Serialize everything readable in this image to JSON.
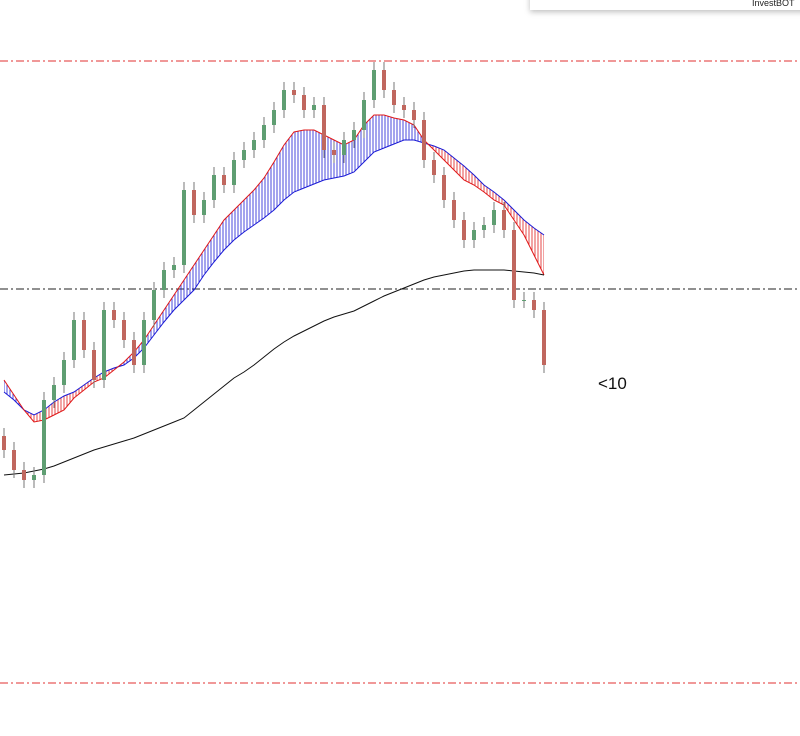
{
  "app": {
    "brand": "InvestBOT"
  },
  "chart_data": {
    "type": "candlestick",
    "ylim": [
      0,
      736
    ],
    "open": [
      300,
      286,
      266,
      256,
      261,
      336,
      351,
      376,
      416,
      386,
      356,
      426,
      416,
      396,
      371,
      416,
      446,
      466,
      471,
      546,
      521,
      536,
      561,
      551,
      576,
      586,
      596,
      611,
      626,
      646,
      641,
      626,
      631,
      586,
      581,
      596,
      606,
      636,
      666,
      646,
      631,
      626,
      616,
      576,
      561,
      536,
      516,
      496,
      506,
      511,
      526,
      506,
      436,
      436,
      426
    ],
    "high": [
      308,
      294,
      274,
      269,
      344,
      359,
      384,
      424,
      424,
      394,
      434,
      434,
      424,
      404,
      424,
      454,
      474,
      479,
      554,
      554,
      544,
      569,
      569,
      584,
      594,
      604,
      619,
      634,
      654,
      654,
      649,
      639,
      639,
      594,
      604,
      614,
      644,
      674,
      674,
      654,
      639,
      634,
      624,
      584,
      569,
      544,
      524,
      514,
      519,
      534,
      534,
      514,
      444,
      444,
      434
    ],
    "low": [
      278,
      258,
      248,
      248,
      253,
      328,
      343,
      368,
      378,
      348,
      348,
      408,
      388,
      363,
      363,
      408,
      438,
      458,
      463,
      513,
      513,
      528,
      543,
      543,
      568,
      578,
      588,
      603,
      618,
      633,
      618,
      618,
      578,
      573,
      573,
      588,
      598,
      628,
      638,
      623,
      618,
      608,
      568,
      553,
      528,
      508,
      488,
      488,
      498,
      503,
      498,
      428,
      428,
      418,
      363
    ],
    "close": [
      286,
      266,
      256,
      261,
      336,
      351,
      376,
      416,
      386,
      356,
      426,
      416,
      396,
      371,
      416,
      446,
      466,
      471,
      546,
      521,
      536,
      561,
      551,
      576,
      586,
      596,
      611,
      626,
      646,
      641,
      626,
      631,
      586,
      581,
      596,
      606,
      636,
      666,
      646,
      631,
      626,
      616,
      576,
      561,
      536,
      516,
      496,
      506,
      511,
      526,
      506,
      436,
      436,
      426,
      371
    ],
    "up_color": "#5f9e72",
    "down_color": "#c0675e",
    "cloud": {
      "up_color": "#1a1ad6",
      "down_color": "#e01818",
      "fast": [
        356,
        341,
        326,
        314,
        316,
        321,
        326,
        338,
        346,
        354,
        358,
        366,
        374,
        384,
        396,
        411,
        426,
        441,
        456,
        471,
        486,
        501,
        516,
        526,
        536,
        546,
        558,
        574,
        591,
        604,
        606,
        606,
        601,
        596,
        591,
        596,
        611,
        621,
        621,
        618,
        616,
        611,
        596,
        586,
        576,
        566,
        556,
        551,
        544,
        536,
        531,
        516,
        501,
        481,
        461
      ],
      "slow": [
        344,
        336,
        326,
        321,
        326,
        334,
        340,
        344,
        351,
        358,
        364,
        368,
        371,
        378,
        388,
        401,
        414,
        426,
        436,
        446,
        461,
        474,
        486,
        496,
        504,
        511,
        518,
        526,
        536,
        544,
        548,
        552,
        556,
        558,
        560,
        564,
        574,
        584,
        588,
        592,
        596,
        596,
        593,
        590,
        586,
        578,
        570,
        561,
        551,
        544,
        536,
        526,
        516,
        508,
        501
      ]
    },
    "long_ma": {
      "color": "#111111",
      "values": [
        261,
        262,
        263,
        265,
        267,
        270,
        274,
        278,
        282,
        286,
        289,
        292,
        295,
        298,
        302,
        306,
        310,
        314,
        318,
        326,
        334,
        342,
        350,
        358,
        364,
        371,
        379,
        387,
        394,
        400,
        405,
        410,
        415,
        419,
        422,
        425,
        430,
        435,
        440,
        444,
        448,
        452,
        456,
        459,
        461,
        463,
        465,
        466,
        466,
        466,
        466,
        465,
        464,
        463,
        461
      ]
    },
    "levels": [
      {
        "value": 675,
        "color": "#e03030"
      },
      {
        "value": 447,
        "color": "#222222"
      },
      {
        "value": 53,
        "color": "#e03030"
      }
    ],
    "annotation": "<10"
  }
}
